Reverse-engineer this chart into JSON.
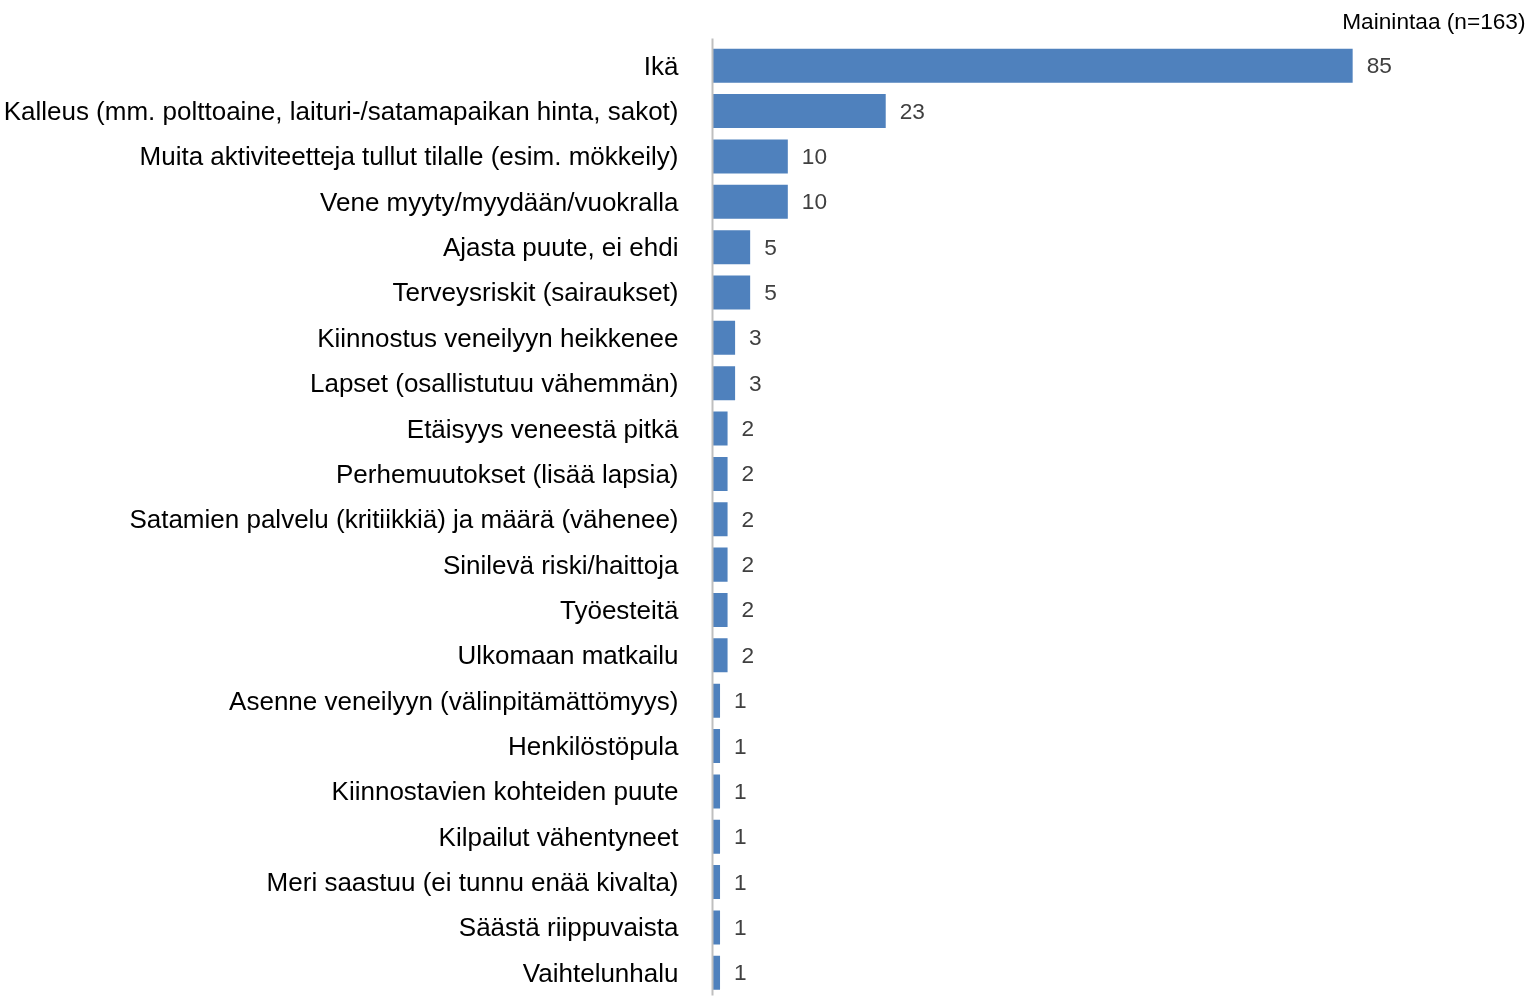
{
  "chart_data": {
    "type": "bar",
    "orientation": "horizontal",
    "title": "Mainintaa (n=163)",
    "categories": [
      "Ikä",
      "Kalleus (mm. polttoaine, laituri-/satamapaikan hinta, sakot)",
      "Muita aktiviteetteja tullut tilalle (esim. mökkeily)",
      "Vene myyty/myydään/vuokralla",
      "Ajasta puute, ei ehdi",
      "Terveysriskit (sairaukset)",
      "Kiinnostus veneilyyn heikkenee",
      "Lapset (osallistutuu vähemmän)",
      "Etäisyys veneestä pitkä",
      "Perhemuutokset (lisää lapsia)",
      "Satamien palvelu (kritiikkiä) ja määrä (vähenee)",
      "Sinilevä riski/haittoja",
      "Työesteitä",
      "Ulkomaan matkailu",
      "Asenne veneilyyn (välinpitämättömyys)",
      "Henkilöstöpula",
      "Kiinnostavien kohteiden puute",
      "Kilpailut vähentyneet",
      "Meri saastuu (ei tunnu enää kivalta)",
      "Säästä riippuvaista",
      "Vaihtelunhalu"
    ],
    "values": [
      85,
      23,
      10,
      10,
      5,
      5,
      3,
      3,
      2,
      2,
      2,
      2,
      2,
      2,
      1,
      1,
      1,
      1,
      1,
      1,
      1
    ],
    "color": "#4f81bd",
    "data_labels": true
  }
}
